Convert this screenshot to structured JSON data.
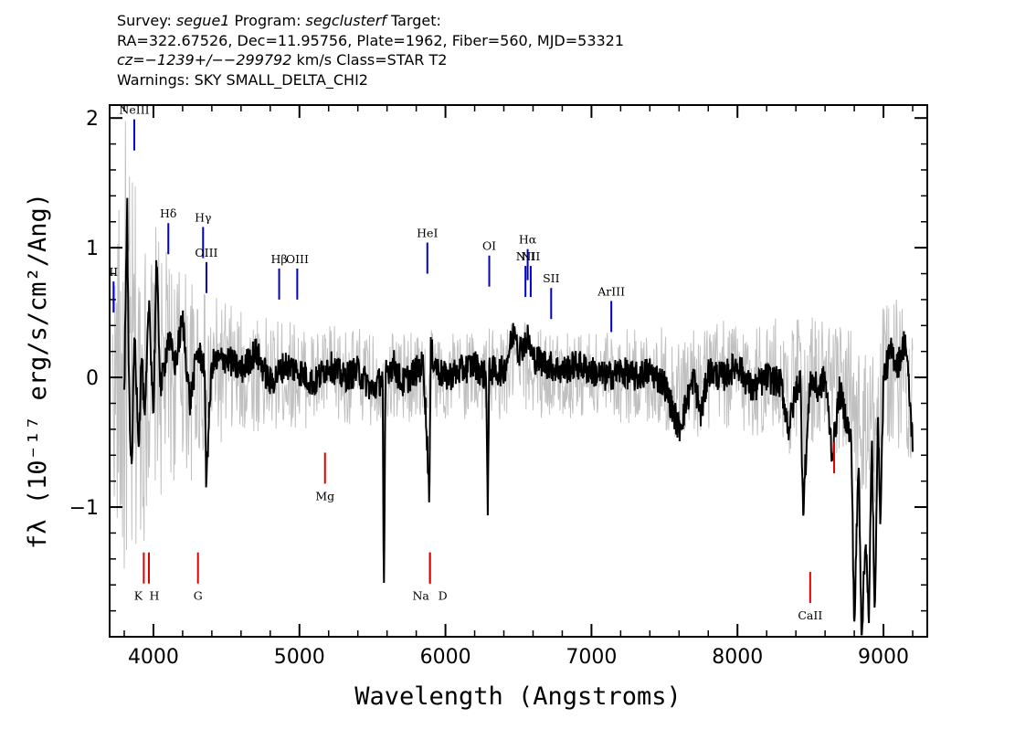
{
  "header": {
    "line1": {
      "p1": "Survey: ",
      "survey": "segue1",
      "p2": " Program: ",
      "program": "segclusterf",
      "p3": " Target:"
    },
    "line2": "RA=322.67526, Dec=11.95756, Plate=1962, Fiber=560, MJD=53321",
    "line3": {
      "cz": "cz=−1239+/−−299792",
      "rest": " km/s Class=STAR T2"
    },
    "line4": "Warnings: SKY SMALL_DELTA_CHI2"
  },
  "chart_data": {
    "type": "line",
    "title": "",
    "xlabel": "Wavelength (Angstroms)",
    "ylabel": "fλ (10⁻¹⁷ erg/s/cm²/Ang)",
    "xlim": [
      3700,
      9300
    ],
    "ylim": [
      -2.0,
      2.1
    ],
    "x_ticks": [
      4000,
      5000,
      6000,
      7000,
      8000,
      9000
    ],
    "y_ticks": [
      -1,
      0,
      1,
      2
    ],
    "x_tick_labels": [
      "4000",
      "5000",
      "6000",
      "7000",
      "8000",
      "9000"
    ],
    "y_tick_labels": [
      "−1",
      "0",
      "1",
      "2"
    ],
    "series": [
      {
        "name": "",
        "color": "#000000",
        "role": "flux",
        "x": [
          3800,
          3820,
          3830,
          3850,
          3870,
          3900,
          3920,
          3940,
          3970,
          4000,
          4020,
          4050,
          4100,
          4150,
          4200,
          4250,
          4300,
          4350,
          4360,
          4400,
          4500,
          4600,
          4700,
          4800,
          4900,
          5000,
          5100,
          5200,
          5300,
          5400,
          5500,
          5570,
          5578,
          5590,
          5650,
          5700,
          5800,
          5850,
          5890,
          5900,
          5950,
          6000,
          6100,
          6200,
          6280,
          6290,
          6300,
          6320,
          6400,
          6480,
          6500,
          6563,
          6600,
          6700,
          6800,
          6900,
          7000,
          7100,
          7200,
          7300,
          7400,
          7500,
          7600,
          7700,
          7750,
          7800,
          7900,
          8000,
          8100,
          8200,
          8300,
          8350,
          8400,
          8430,
          8450,
          8500,
          8550,
          8600,
          8650,
          8700,
          8780,
          8800,
          8830,
          8850,
          8880,
          8900,
          8920,
          8940,
          8960,
          8980,
          9000,
          9050,
          9100,
          9150,
          9200
        ],
        "y": [
          -0.15,
          1.4,
          0.1,
          -0.8,
          0.35,
          -0.5,
          0.2,
          -0.4,
          0.6,
          -0.3,
          0.9,
          -0.1,
          0.3,
          0.1,
          0.45,
          -0.2,
          0.2,
          0.1,
          -0.8,
          0.1,
          0.15,
          0.05,
          0.2,
          -0.05,
          0.1,
          0.05,
          -0.05,
          0.1,
          0.0,
          0.05,
          -0.1,
          0.0,
          -1.85,
          0.05,
          0.1,
          -0.05,
          0.05,
          0.1,
          -0.9,
          0.2,
          0.05,
          0.0,
          0.05,
          0.1,
          0.0,
          -1.1,
          0.1,
          0.05,
          0.05,
          0.4,
          0.2,
          0.3,
          0.15,
          0.1,
          0.05,
          0.1,
          0.05,
          0.0,
          0.05,
          0.0,
          0.05,
          -0.05,
          -0.4,
          0.0,
          -0.3,
          0.05,
          0.0,
          0.1,
          -0.1,
          0.0,
          -0.05,
          -0.4,
          -0.1,
          0.0,
          -1.0,
          0.0,
          -0.1,
          0.0,
          -0.6,
          -0.1,
          -0.5,
          -1.95,
          -0.6,
          -1.98,
          -1.2,
          -1.95,
          -0.4,
          -1.95,
          -0.3,
          -1.1,
          0.0,
          0.2,
          0.1,
          0.3,
          -0.5
        ]
      },
      {
        "name": "",
        "color": "#c0c0c0",
        "role": "error",
        "x": [
          3720,
          3800,
          3850,
          3900,
          4000,
          4100,
          4200,
          4300,
          4400,
          4600,
          5000,
          5600,
          6000,
          6500,
          7000,
          7500,
          8000,
          8500,
          9000,
          9200
        ],
        "y": [
          0.8,
          1.9,
          1.7,
          1.3,
          1.0,
          0.9,
          0.8,
          0.75,
          0.6,
          0.5,
          0.4,
          0.35,
          0.35,
          0.35,
          0.35,
          0.4,
          0.45,
          0.5,
          0.6,
          0.6
        ]
      }
    ],
    "emission_lines": [
      {
        "label": "NeIII",
        "x": 3869,
        "y": 1.75
      },
      {
        "label": "II",
        "x": 3727,
        "y": 0.5
      },
      {
        "label": "Hδ",
        "x": 4102,
        "y": 0.95
      },
      {
        "label": "Hγ",
        "x": 4340,
        "y": 0.92
      },
      {
        "label": "OIII",
        "x": 4363,
        "y": 0.65
      },
      {
        "label": "Hβ",
        "x": 4861,
        "y": 0.6
      },
      {
        "label": "OIII",
        "x": 4985,
        "y": 0.6
      },
      {
        "label": "HeI",
        "x": 5876,
        "y": 0.8
      },
      {
        "label": "OI",
        "x": 6300,
        "y": 0.7
      },
      {
        "label": "NII",
        "x": 6548,
        "y": 0.62
      },
      {
        "label": "Hα",
        "x": 6563,
        "y": 0.75
      },
      {
        "label": "NII",
        "x": 6584,
        "y": 0.62
      },
      {
        "label": "SII",
        "x": 6724,
        "y": 0.45
      },
      {
        "label": "ArIII",
        "x": 7136,
        "y": 0.35
      }
    ],
    "absorption_lines": [
      {
        "label": "K",
        "x": 3934,
        "y": -1.35
      },
      {
        "label": "H",
        "x": 3969,
        "y": -1.35
      },
      {
        "label": "G",
        "x": 4305,
        "y": -1.35
      },
      {
        "label": "Mg",
        "x": 5175,
        "y": -0.58
      },
      {
        "label": "Na",
        "x": 5894,
        "y": -1.35
      },
      {
        "label": "D",
        "x": 5894,
        "y": -1.35
      },
      {
        "label": "CaII",
        "x": 8498,
        "y": -1.5
      },
      {
        "label": "",
        "x": 8662,
        "y": -0.5
      }
    ],
    "line_colors": {
      "emission": "#0000cc",
      "absorption": "#dd0000"
    }
  }
}
